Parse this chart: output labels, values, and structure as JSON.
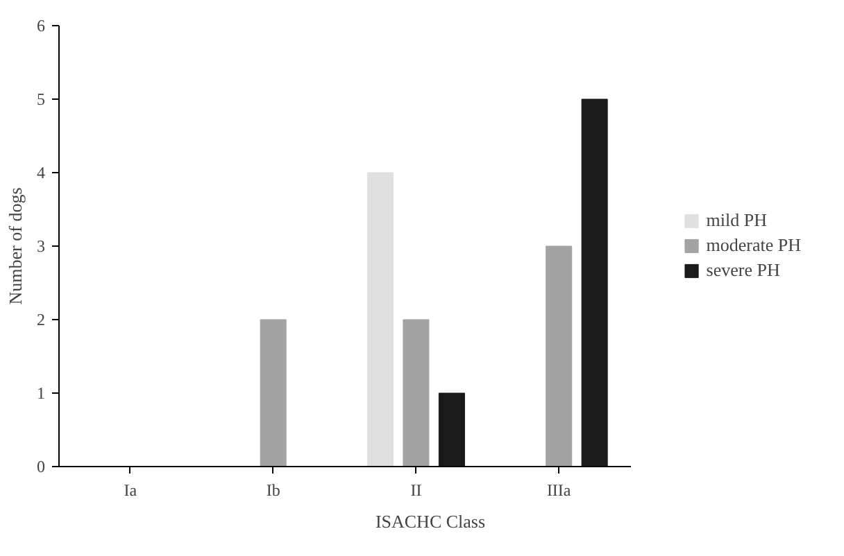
{
  "chart_data": {
    "type": "bar",
    "xlabel": "ISACHC Class",
    "ylabel": "Number of dogs",
    "categories": [
      "Ia",
      "Ib",
      "II",
      "IIIa"
    ],
    "series": [
      {
        "name": "mild PH",
        "color": "#e0e0e0",
        "values": [
          0,
          0,
          4,
          0
        ]
      },
      {
        "name": "moderate PH",
        "color": "#a3a3a3",
        "values": [
          0,
          2,
          2,
          3
        ]
      },
      {
        "name": "severe PH",
        "color": "#1a1a1a",
        "values": [
          0,
          0,
          1,
          5
        ]
      }
    ],
    "ylim": [
      0,
      6
    ],
    "yticks": [
      0,
      1,
      2,
      3,
      4,
      5,
      6
    ],
    "grid": false,
    "legend": "right"
  }
}
